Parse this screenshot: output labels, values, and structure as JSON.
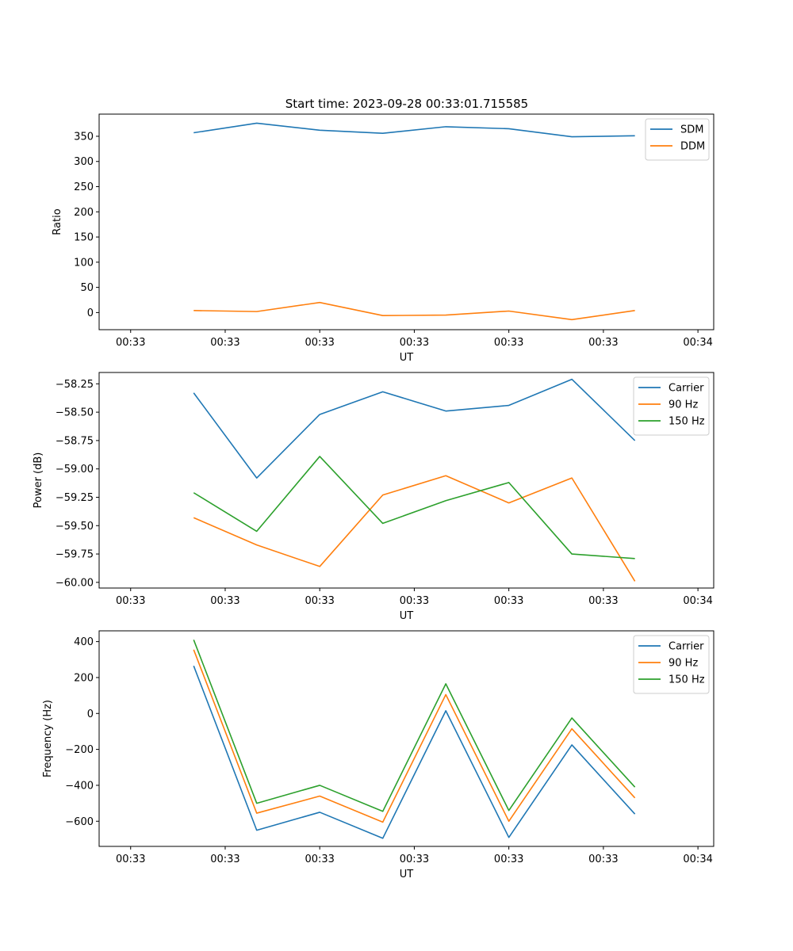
{
  "figure_title": "Start time: 2023-09-28 00:33:01.715585",
  "colors": {
    "c0": "#1f77b4",
    "c1": "#ff7f0e",
    "c2": "#2ca02c"
  },
  "chart_data": [
    {
      "type": "line",
      "title": "Start time: 2023-09-28 00:33:01.715585",
      "xlabel": "UT",
      "ylabel": "Ratio",
      "x_tick_labels": [
        "00:33",
        "00:33",
        "00:33",
        "00:33",
        "00:33",
        "00:33",
        "00:34"
      ],
      "xlim": [
        -0.5,
        9.25
      ],
      "ylim": [
        -34,
        394
      ],
      "yticks": [
        0,
        50,
        100,
        150,
        200,
        250,
        300,
        350
      ],
      "legend_position": "top-right",
      "x": [
        1,
        2,
        3,
        4,
        5,
        6,
        7,
        8
      ],
      "series": [
        {
          "name": "SDM",
          "color": "#1f77b4",
          "values": [
            357,
            376,
            362,
            356,
            369,
            365,
            349,
            351
          ]
        },
        {
          "name": "DDM",
          "color": "#ff7f0e",
          "values": [
            4,
            2,
            20,
            -6,
            -5,
            3,
            -14,
            4
          ]
        }
      ]
    },
    {
      "type": "line",
      "title": "",
      "xlabel": "UT",
      "ylabel": "Power (dB)",
      "x_tick_labels": [
        "00:33",
        "00:33",
        "00:33",
        "00:33",
        "00:33",
        "00:33",
        "00:34"
      ],
      "xlim": [
        -0.5,
        9.25
      ],
      "ylim": [
        -60.05,
        -58.15
      ],
      "yticks": [
        -60.0,
        -59.75,
        -59.5,
        -59.25,
        -59.0,
        -58.75,
        -58.5,
        -58.25
      ],
      "yticks_text": [
        "−60.00",
        "−59.75",
        "−59.50",
        "−59.25",
        "−59.00",
        "−58.75",
        "−58.50",
        "−58.25"
      ],
      "legend_position": "top-right",
      "x": [
        1,
        2,
        3,
        4,
        5,
        6,
        7,
        8
      ],
      "series": [
        {
          "name": "Carrier",
          "color": "#1f77b4",
          "values": [
            -58.33,
            -59.08,
            -58.52,
            -58.32,
            -58.49,
            -58.44,
            -58.21,
            -58.75
          ]
        },
        {
          "name": "90 Hz",
          "color": "#ff7f0e",
          "values": [
            -59.43,
            -59.67,
            -59.86,
            -59.23,
            -59.06,
            -59.3,
            -59.08,
            -59.99
          ]
        },
        {
          "name": "150 Hz",
          "color": "#2ca02c",
          "values": [
            -59.21,
            -59.55,
            -58.89,
            -59.48,
            -59.28,
            -59.12,
            -59.75,
            -59.79
          ]
        }
      ]
    },
    {
      "type": "line",
      "title": "",
      "xlabel": "UT",
      "ylabel": "Frequency (Hz)",
      "x_tick_labels": [
        "00:33",
        "00:33",
        "00:33",
        "00:33",
        "00:33",
        "00:33",
        "00:34"
      ],
      "xlim": [
        -0.5,
        9.25
      ],
      "ylim": [
        -740,
        460
      ],
      "yticks": [
        -600,
        -400,
        -200,
        0,
        200,
        400
      ],
      "yticks_text": [
        "−600",
        "−400",
        "−200",
        "0",
        "200",
        "400"
      ],
      "legend_position": "top-right",
      "x": [
        1,
        2,
        3,
        4,
        5,
        6,
        7,
        8
      ],
      "series": [
        {
          "name": "Carrier",
          "color": "#1f77b4",
          "values": [
            265,
            -650,
            -550,
            -695,
            15,
            -690,
            -175,
            -560
          ]
        },
        {
          "name": "90 Hz",
          "color": "#ff7f0e",
          "values": [
            355,
            -555,
            -460,
            -605,
            105,
            -600,
            -85,
            -470
          ]
        },
        {
          "name": "150 Hz",
          "color": "#2ca02c",
          "values": [
            410,
            -500,
            -400,
            -545,
            165,
            -540,
            -25,
            -410
          ]
        }
      ]
    }
  ]
}
